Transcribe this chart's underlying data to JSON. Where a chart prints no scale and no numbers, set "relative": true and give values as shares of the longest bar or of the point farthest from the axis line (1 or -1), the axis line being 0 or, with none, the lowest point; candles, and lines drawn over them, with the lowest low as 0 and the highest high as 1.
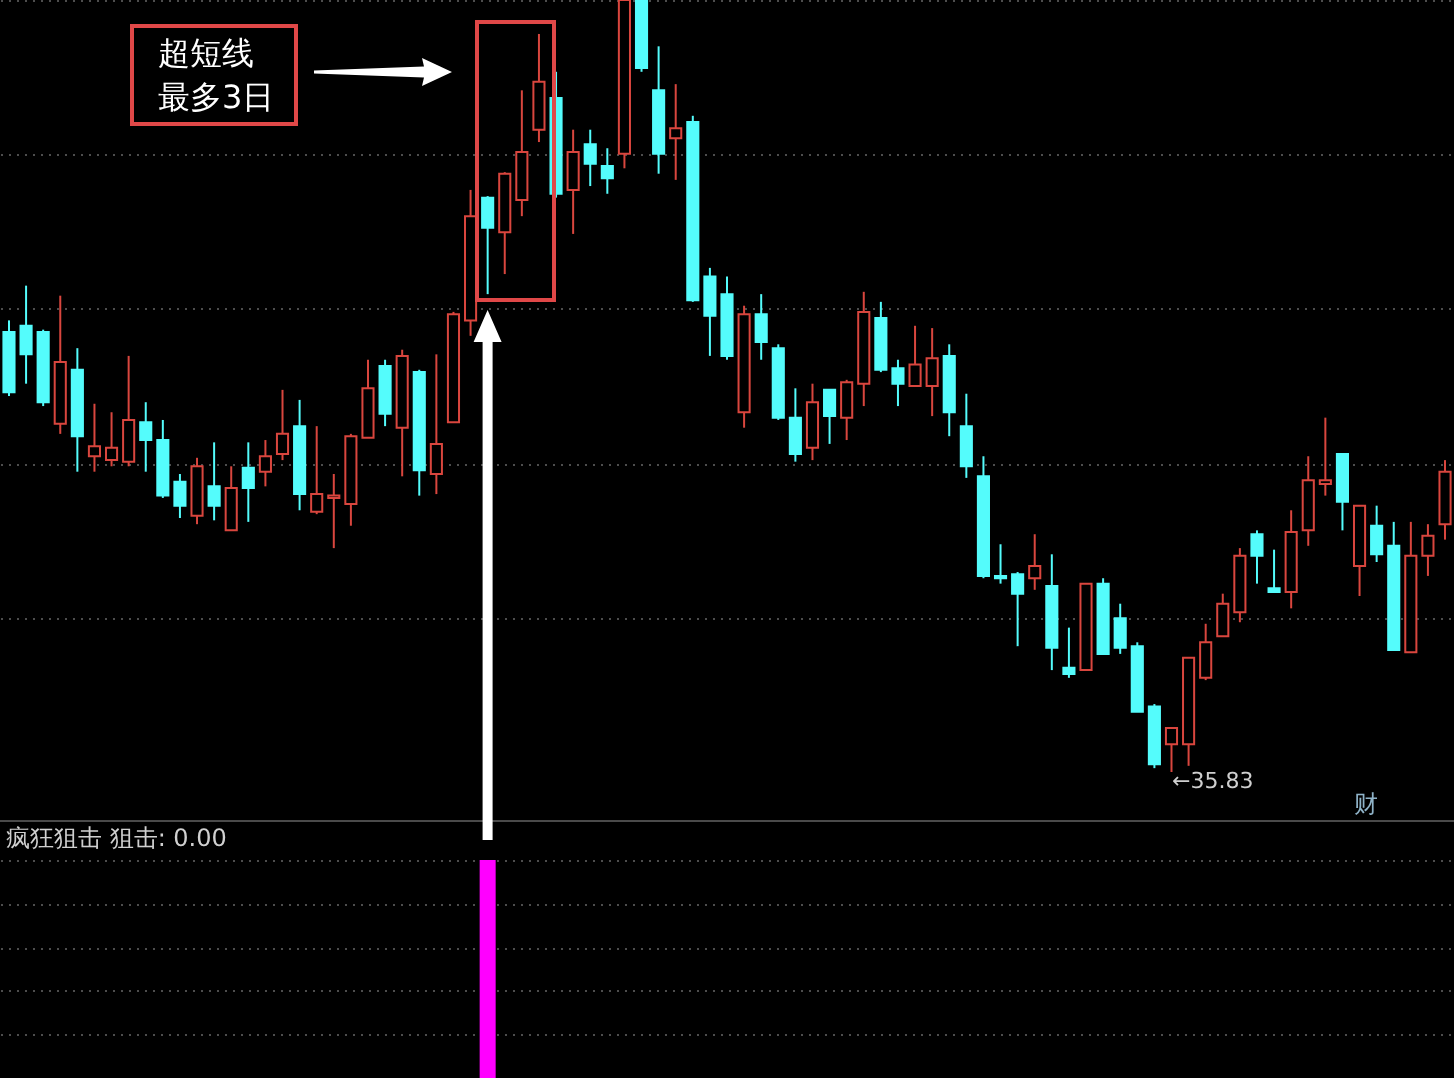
{
  "chart_data": [
    {
      "type": "candlestick",
      "relative": true,
      "grid": true,
      "categories": [
        null,
        null,
        null,
        null,
        null,
        null,
        null,
        null,
        null,
        null,
        null,
        null,
        null,
        null,
        null,
        null,
        null,
        null,
        null,
        null,
        null,
        null,
        null,
        null,
        null,
        null,
        null,
        null,
        null,
        null,
        null,
        null,
        null,
        null,
        null,
        null,
        null,
        null,
        null,
        null,
        null,
        null,
        null,
        null,
        null,
        null,
        null,
        null,
        null,
        null,
        null,
        null,
        null,
        null,
        null,
        null,
        null,
        null,
        null,
        null,
        null,
        null,
        null,
        null,
        null,
        null,
        null,
        null,
        null,
        null,
        null,
        null,
        null,
        null,
        null,
        null,
        null,
        null,
        null,
        null,
        null,
        null,
        null,
        null,
        null
      ],
      "ohlc": [
        [
          0.57,
          0.585,
          0.487,
          0.492
        ],
        [
          0.578,
          0.63,
          0.503,
          0.541
        ],
        [
          0.57,
          0.573,
          0.474,
          0.479
        ],
        [
          0.451,
          0.617,
          0.438,
          0.531
        ],
        [
          0.521,
          0.549,
          0.389,
          0.435
        ],
        [
          0.409,
          0.477,
          0.389,
          0.422
        ],
        [
          0.404,
          0.466,
          0.396,
          0.42
        ],
        [
          0.402,
          0.539,
          0.396,
          0.456
        ],
        [
          0.453,
          0.479,
          0.389,
          0.43
        ],
        [
          0.43,
          0.456,
          0.355,
          0.358
        ],
        [
          0.376,
          0.386,
          0.329,
          0.345
        ],
        [
          0.332,
          0.407,
          0.321,
          0.396
        ],
        [
          0.37,
          0.427,
          0.326,
          0.345
        ],
        [
          0.313,
          0.396,
          0.313,
          0.368
        ],
        [
          0.394,
          0.427,
          0.324,
          0.368
        ],
        [
          0.389,
          0.43,
          0.37,
          0.409
        ],
        [
          0.412,
          0.495,
          0.404,
          0.438
        ],
        [
          0.448,
          0.482,
          0.339,
          0.36
        ],
        [
          0.337,
          0.448,
          0.334,
          0.36
        ],
        [
          0.355,
          0.386,
          0.29,
          0.358
        ],
        [
          0.347,
          0.438,
          0.319,
          0.435
        ],
        [
          0.433,
          0.534,
          0.433,
          0.497
        ],
        [
          0.526,
          0.534,
          0.448,
          0.464
        ],
        [
          0.446,
          0.547,
          0.383,
          0.539
        ],
        [
          0.518,
          0.521,
          0.358,
          0.391
        ],
        [
          0.386,
          0.541,
          0.36,
          0.425
        ],
        [
          0.453,
          0.596,
          0.453,
          0.593
        ],
        [
          0.585,
          0.754,
          0.565,
          0.72
        ],
        [
          0.744,
          0.746,
          0.619,
          0.705
        ],
        [
          0.699,
          0.777,
          0.645,
          0.775
        ],
        [
          0.741,
          0.883,
          0.72,
          0.803
        ],
        [
          0.832,
          0.956,
          0.816,
          0.894
        ],
        [
          0.873,
          0.907,
          0.744,
          0.749
        ],
        [
          0.754,
          0.832,
          0.697,
          0.803
        ],
        [
          0.813,
          0.832,
          0.759,
          0.788
        ],
        [
          0.785,
          0.808,
          0.749,
          0.769
        ],
        [
          0.801,
          1,
          0.782,
          1
        ],
        [
          1,
          1,
          0.907,
          0.912
        ],
        [
          0.883,
          0.94,
          0.775,
          0.801
        ],
        [
          0.821,
          0.891,
          0.767,
          0.834
        ],
        [
          0.842,
          0.85,
          0.609,
          0.611
        ],
        [
          0.642,
          0.653,
          0.539,
          0.591
        ],
        [
          0.619,
          0.642,
          0.534,
          0.539
        ],
        [
          0.466,
          0.604,
          0.446,
          0.593
        ],
        [
          0.593,
          0.619,
          0.534,
          0.557
        ],
        [
          0.549,
          0.554,
          0.456,
          0.459
        ],
        [
          0.459,
          0.497,
          0.402,
          0.412
        ],
        [
          0.42,
          0.503,
          0.404,
          0.479
        ],
        [
          0.495,
          0.495,
          0.425,
          0.461
        ],
        [
          0.459,
          0.508,
          0.43,
          0.505
        ],
        [
          0.503,
          0.622,
          0.474,
          0.596
        ],
        [
          0.588,
          0.609,
          0.518,
          0.521
        ],
        [
          0.523,
          0.534,
          0.474,
          0.503
        ],
        [
          0.5,
          0.578,
          0.5,
          0.528
        ],
        [
          0.5,
          0.575,
          0.461,
          0.536
        ],
        [
          0.539,
          0.554,
          0.435,
          0.466
        ],
        [
          0.448,
          0.49,
          0.381,
          0.396
        ],
        [
          0.383,
          0.409,
          0.251,
          0.254
        ],
        [
          0.254,
          0.295,
          0.244,
          0.251
        ],
        [
          0.256,
          0.259,
          0.163,
          0.231
        ],
        [
          0.251,
          0.308,
          0.236,
          0.267
        ],
        [
          0.241,
          0.282,
          0.132,
          0.161
        ],
        [
          0.135,
          0.187,
          0.122,
          0.127
        ],
        [
          0.132,
          0.244,
          0.132,
          0.244
        ],
        [
          0.244,
          0.251,
          0.153,
          0.153
        ],
        [
          0.199,
          0.218,
          0.153,
          0.161
        ],
        [
          0.163,
          0.168,
          0.078,
          0.078
        ],
        [
          0.085,
          0.088,
          0.005,
          0.01
        ],
        [
          0.036,
          0.057,
          0,
          0.057
        ],
        [
          0.036,
          0.148,
          0.008,
          0.148
        ],
        [
          0.122,
          0.192,
          0.119,
          0.168
        ],
        [
          0.176,
          0.231,
          0.176,
          0.218
        ],
        [
          0.207,
          0.29,
          0.194,
          0.28
        ],
        [
          0.308,
          0.313,
          0.244,
          0.28
        ],
        [
          0.238,
          0.288,
          0.233,
          0.233
        ],
        [
          0.233,
          0.339,
          0.212,
          0.311
        ],
        [
          0.313,
          0.409,
          0.293,
          0.378
        ],
        [
          0.373,
          0.459,
          0.358,
          0.378
        ],
        [
          0.412,
          0.412,
          0.313,
          0.35
        ],
        [
          0.267,
          0.345,
          0.228,
          0.345
        ],
        [
          0.319,
          0.345,
          0.272,
          0.282
        ],
        [
          0.293,
          0.324,
          0.158,
          0.158
        ],
        [
          0.155,
          0.324,
          0.155,
          0.28
        ],
        [
          0.28,
          0.321,
          0.254,
          0.306
        ],
        [
          0.321,
          0.404,
          0.301,
          0.389
        ]
      ],
      "colors": [
        "#54fcfc",
        "#54fcfc",
        "#54fcfc",
        "#d9463e",
        "#54fcfc",
        "#d9463e",
        "#d9463e",
        "#d9463e",
        "#54fcfc",
        "#54fcfc",
        "#54fcfc",
        "#d9463e",
        "#54fcfc",
        "#d9463e",
        "#54fcfc",
        "#d9463e",
        "#d9463e",
        "#54fcfc",
        "#d9463e",
        "#d9463e",
        "#d9463e",
        "#d9463e",
        "#54fcfc",
        "#d9463e",
        "#54fcfc",
        "#d9463e",
        "#d9463e",
        "#d9463e",
        "#54fcfc",
        "#d9463e",
        "#d9463e",
        "#d9463e",
        "#54fcfc",
        "#d9463e",
        "#54fcfc",
        "#54fcfc",
        "#d9463e",
        "#54fcfc",
        "#54fcfc",
        "#d9463e",
        "#54fcfc",
        "#54fcfc",
        "#54fcfc",
        "#d9463e",
        "#54fcfc",
        "#54fcfc",
        "#54fcfc",
        "#d9463e",
        "#54fcfc",
        "#d9463e",
        "#d9463e",
        "#54fcfc",
        "#54fcfc",
        "#d9463e",
        "#d9463e",
        "#54fcfc",
        "#54fcfc",
        "#54fcfc",
        "#54fcfc",
        "#54fcfc",
        "#d9463e",
        "#54fcfc",
        "#54fcfc",
        "#d9463e",
        "#54fcfc",
        "#54fcfc",
        "#54fcfc",
        "#54fcfc",
        "#d9463e",
        "#d9463e",
        "#d9463e",
        "#d9463e",
        "#d9463e",
        "#54fcfc",
        "#54fcfc",
        "#d9463e",
        "#d9463e",
        "#d9463e",
        "#54fcfc",
        "#d9463e",
        "#54fcfc",
        "#54fcfc",
        "#d9463e",
        "#d9463e",
        "#d9463e"
      ],
      "annotations": [
        "超短线最多3日",
        "←35.83",
        "财"
      ]
    },
    {
      "type": "bar",
      "title": "疯狂狙击 狙击: 0.00",
      "relative": true,
      "grid": true,
      "color": "#ff00ff",
      "categories": [
        null,
        null,
        null,
        null,
        null,
        null,
        null,
        null,
        null,
        null,
        null,
        null,
        null,
        null,
        null,
        null,
        null,
        null,
        null,
        null,
        null,
        null,
        null,
        null,
        null,
        null,
        null,
        null,
        null,
        null,
        null,
        null,
        null,
        null,
        null,
        null,
        null,
        null,
        null,
        null,
        null,
        null,
        null,
        null,
        null,
        null,
        null,
        null,
        null,
        null,
        null,
        null,
        null,
        null,
        null,
        null,
        null,
        null,
        null,
        null,
        null,
        null,
        null,
        null,
        null,
        null,
        null,
        null,
        null,
        null,
        null,
        null,
        null,
        null,
        null,
        null,
        null,
        null,
        null,
        null,
        null,
        null,
        null,
        null,
        null
      ],
      "values": [
        null,
        null,
        null,
        null,
        null,
        null,
        null,
        null,
        null,
        null,
        null,
        null,
        null,
        null,
        null,
        null,
        null,
        null,
        null,
        null,
        null,
        null,
        null,
        null,
        null,
        null,
        null,
        null,
        1,
        null,
        null,
        null,
        null,
        null,
        null,
        null,
        null,
        null,
        null,
        null,
        null,
        null,
        null,
        null,
        null,
        null,
        null,
        null,
        null,
        null,
        null,
        null,
        null,
        null,
        null,
        null,
        null,
        null,
        null,
        null,
        null,
        null,
        null,
        null,
        null,
        null,
        null,
        null,
        null,
        null,
        null,
        null,
        null,
        null,
        null,
        null,
        null,
        null,
        null,
        null,
        null,
        null,
        null,
        null,
        null
      ]
    }
  ]
}
